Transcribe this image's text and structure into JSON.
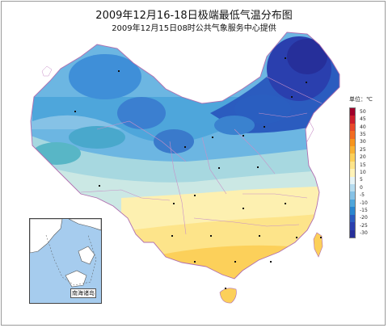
{
  "title": "2009年12月16-18日极端最低气温分布图",
  "subtitle": "2009年12月15日08时公共气象服务中心提供",
  "legend": {
    "unit_label": "单位：℃",
    "ticks": [
      "50",
      "45",
      "40",
      "35",
      "30",
      "25",
      "20",
      "15",
      "10",
      "5",
      "0",
      "-5",
      "-10",
      "-15",
      "-20",
      "-25",
      "-30"
    ],
    "colors": [
      "#a0002a",
      "#cc1e2c",
      "#e8482a",
      "#f26c22",
      "#f7941d",
      "#f9b233",
      "#fcd05a",
      "#fde48a",
      "#fff3b8",
      "#e6f4f7",
      "#b6dcef",
      "#86c2e6",
      "#4ea6db",
      "#2a86cf",
      "#2b5cbf",
      "#2a3fae",
      "#262f9a"
    ]
  },
  "inset": {
    "label": "南海诸岛"
  },
  "colors": {
    "frame": "#9a9a9a",
    "water": "#a6ccee",
    "land_neighbor": "#ffffff",
    "boundary": "#c890c8"
  }
}
